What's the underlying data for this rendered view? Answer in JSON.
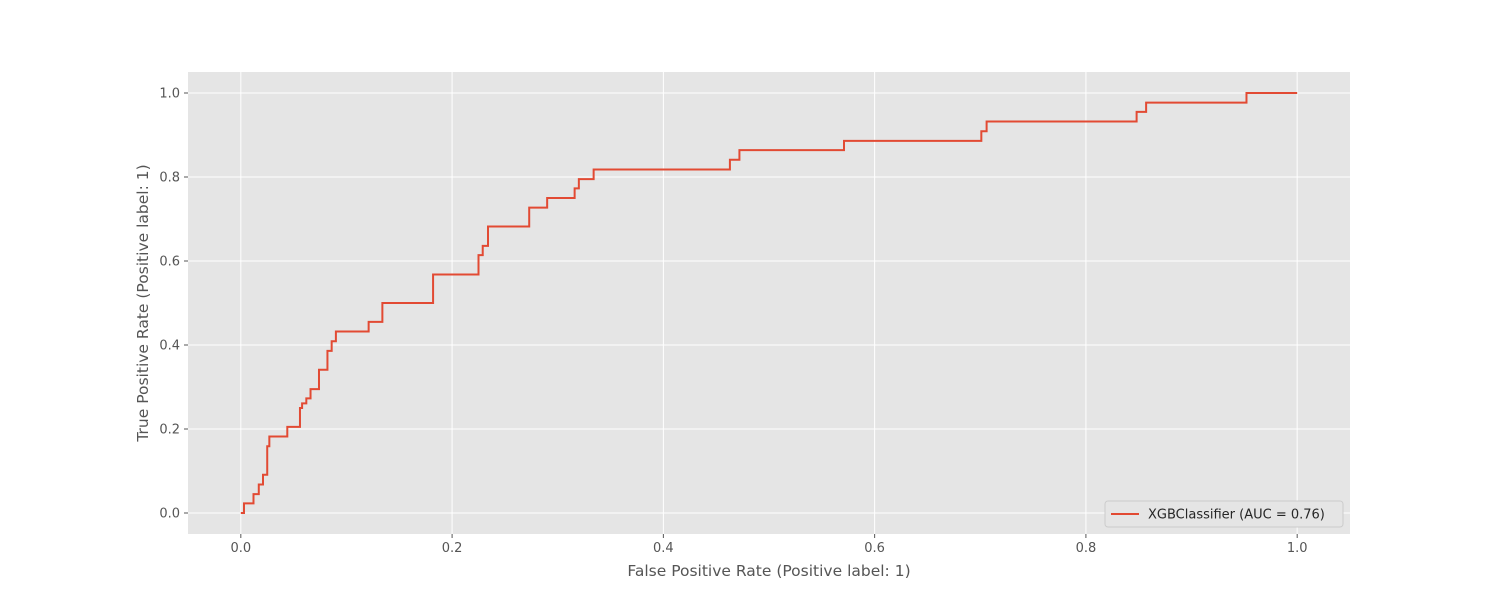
{
  "chart_data": {
    "type": "line",
    "title": "",
    "xlabel": "False Positive Rate (Positive label: 1)",
    "ylabel": "True Positive Rate (Positive label: 1)",
    "xlim": [
      -0.05,
      1.05
    ],
    "ylim": [
      -0.05,
      1.05
    ],
    "xticks": [
      0.0,
      0.2,
      0.4,
      0.6,
      0.8,
      1.0
    ],
    "xtick_labels": [
      "0.0",
      "0.2",
      "0.4",
      "0.6",
      "0.8",
      "1.0"
    ],
    "yticks": [
      0.0,
      0.2,
      0.4,
      0.6,
      0.8,
      1.0
    ],
    "ytick_labels": [
      "0.0",
      "0.2",
      "0.4",
      "0.6",
      "0.8",
      "1.0"
    ],
    "grid": true,
    "legend_position": "lower-right",
    "series": [
      {
        "name": "XGBClassifier (AUC = 0.76)",
        "color": "#E24A33",
        "x": [
          0.0,
          0.003,
          0.003,
          0.012,
          0.012,
          0.017,
          0.017,
          0.021,
          0.021,
          0.025,
          0.025,
          0.027,
          0.027,
          0.031,
          0.031,
          0.044,
          0.044,
          0.056,
          0.056,
          0.058,
          0.058,
          0.062,
          0.062,
          0.066,
          0.066,
          0.074,
          0.074,
          0.082,
          0.082,
          0.086,
          0.086,
          0.09,
          0.09,
          0.121,
          0.121,
          0.134,
          0.134,
          0.182,
          0.182,
          0.225,
          0.225,
          0.229,
          0.229,
          0.234,
          0.234,
          0.273,
          0.273,
          0.29,
          0.29,
          0.316,
          0.316,
          0.32,
          0.32,
          0.334,
          0.334,
          0.463,
          0.463,
          0.472,
          0.472,
          0.571,
          0.571,
          0.701,
          0.701,
          0.706,
          0.706,
          0.848,
          0.848,
          0.857,
          0.857,
          0.952,
          0.952,
          1.0
        ],
        "y": [
          0.0,
          0.0,
          0.023,
          0.023,
          0.045,
          0.045,
          0.068,
          0.068,
          0.091,
          0.091,
          0.159,
          0.159,
          0.182,
          0.182,
          0.182,
          0.182,
          0.205,
          0.205,
          0.25,
          0.25,
          0.261,
          0.261,
          0.273,
          0.273,
          0.295,
          0.295,
          0.341,
          0.341,
          0.386,
          0.386,
          0.409,
          0.409,
          0.432,
          0.432,
          0.455,
          0.455,
          0.5,
          0.5,
          0.568,
          0.568,
          0.614,
          0.614,
          0.636,
          0.636,
          0.682,
          0.682,
          0.727,
          0.727,
          0.75,
          0.75,
          0.773,
          0.773,
          0.795,
          0.795,
          0.818,
          0.818,
          0.841,
          0.841,
          0.864,
          0.864,
          0.886,
          0.886,
          0.909,
          0.909,
          0.932,
          0.932,
          0.955,
          0.955,
          0.977,
          0.977,
          1.0,
          1.0
        ]
      }
    ]
  },
  "colors": {
    "plot_background": "#E5E5E5",
    "grid": "#FFFFFF",
    "tick_text": "#555555",
    "legend_background": "#E5E5E5",
    "legend_border": "#CCCCCC"
  }
}
